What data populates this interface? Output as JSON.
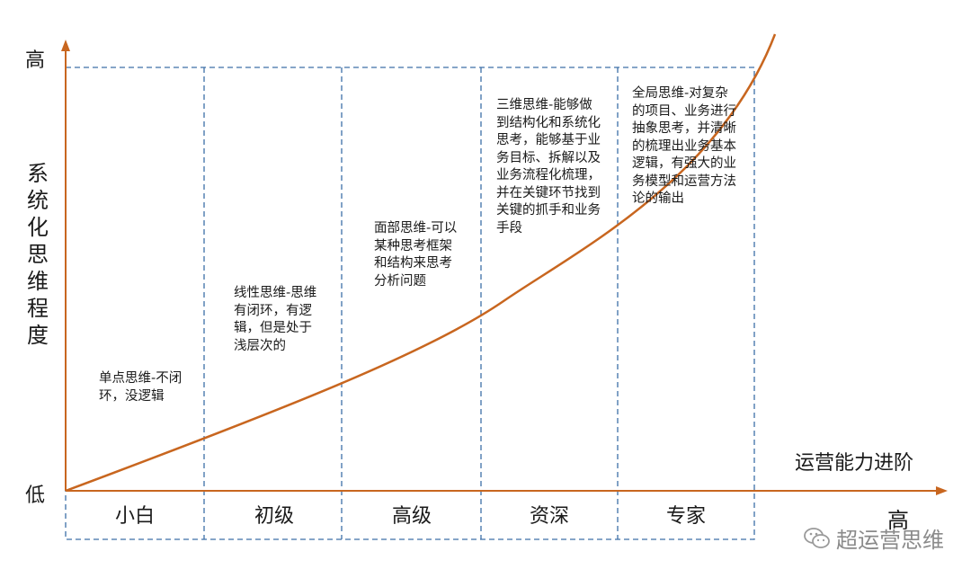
{
  "axes": {
    "y_high": "高",
    "y_low": "低",
    "y_title": "系统化思维程度",
    "x_title": "运营能力进阶",
    "x_high": "高"
  },
  "stages": [
    {
      "label": "小白",
      "description": "单点思维-不闭环，没逻辑"
    },
    {
      "label": "初级",
      "description": "线性思维-思维有闭环，有逻辑，但是处于浅层次的"
    },
    {
      "label": "高级",
      "description": "面部思维-可以某种思考框架和结构来思考分析问题"
    },
    {
      "label": "资深",
      "description": "三维思维-能够做到结构化和系统化思考，能够基于业务目标、拆解以及业务流程化梳理，并在关键环节找到关键的抓手和业务手段"
    },
    {
      "label": "专家",
      "description": "全局思维-对复杂的项目、业务进行抽象思考，并清晰的梳理出业务基本逻辑，有强大的业务模型和运营方法论的输出"
    }
  ],
  "watermark": "超运营思维",
  "colors": {
    "axis": "#c8661f",
    "curve": "#c8661f",
    "dashed": "#3d6fa8",
    "text": "#1a1a1a"
  },
  "icons": {
    "watermark": "wechat-icon"
  }
}
